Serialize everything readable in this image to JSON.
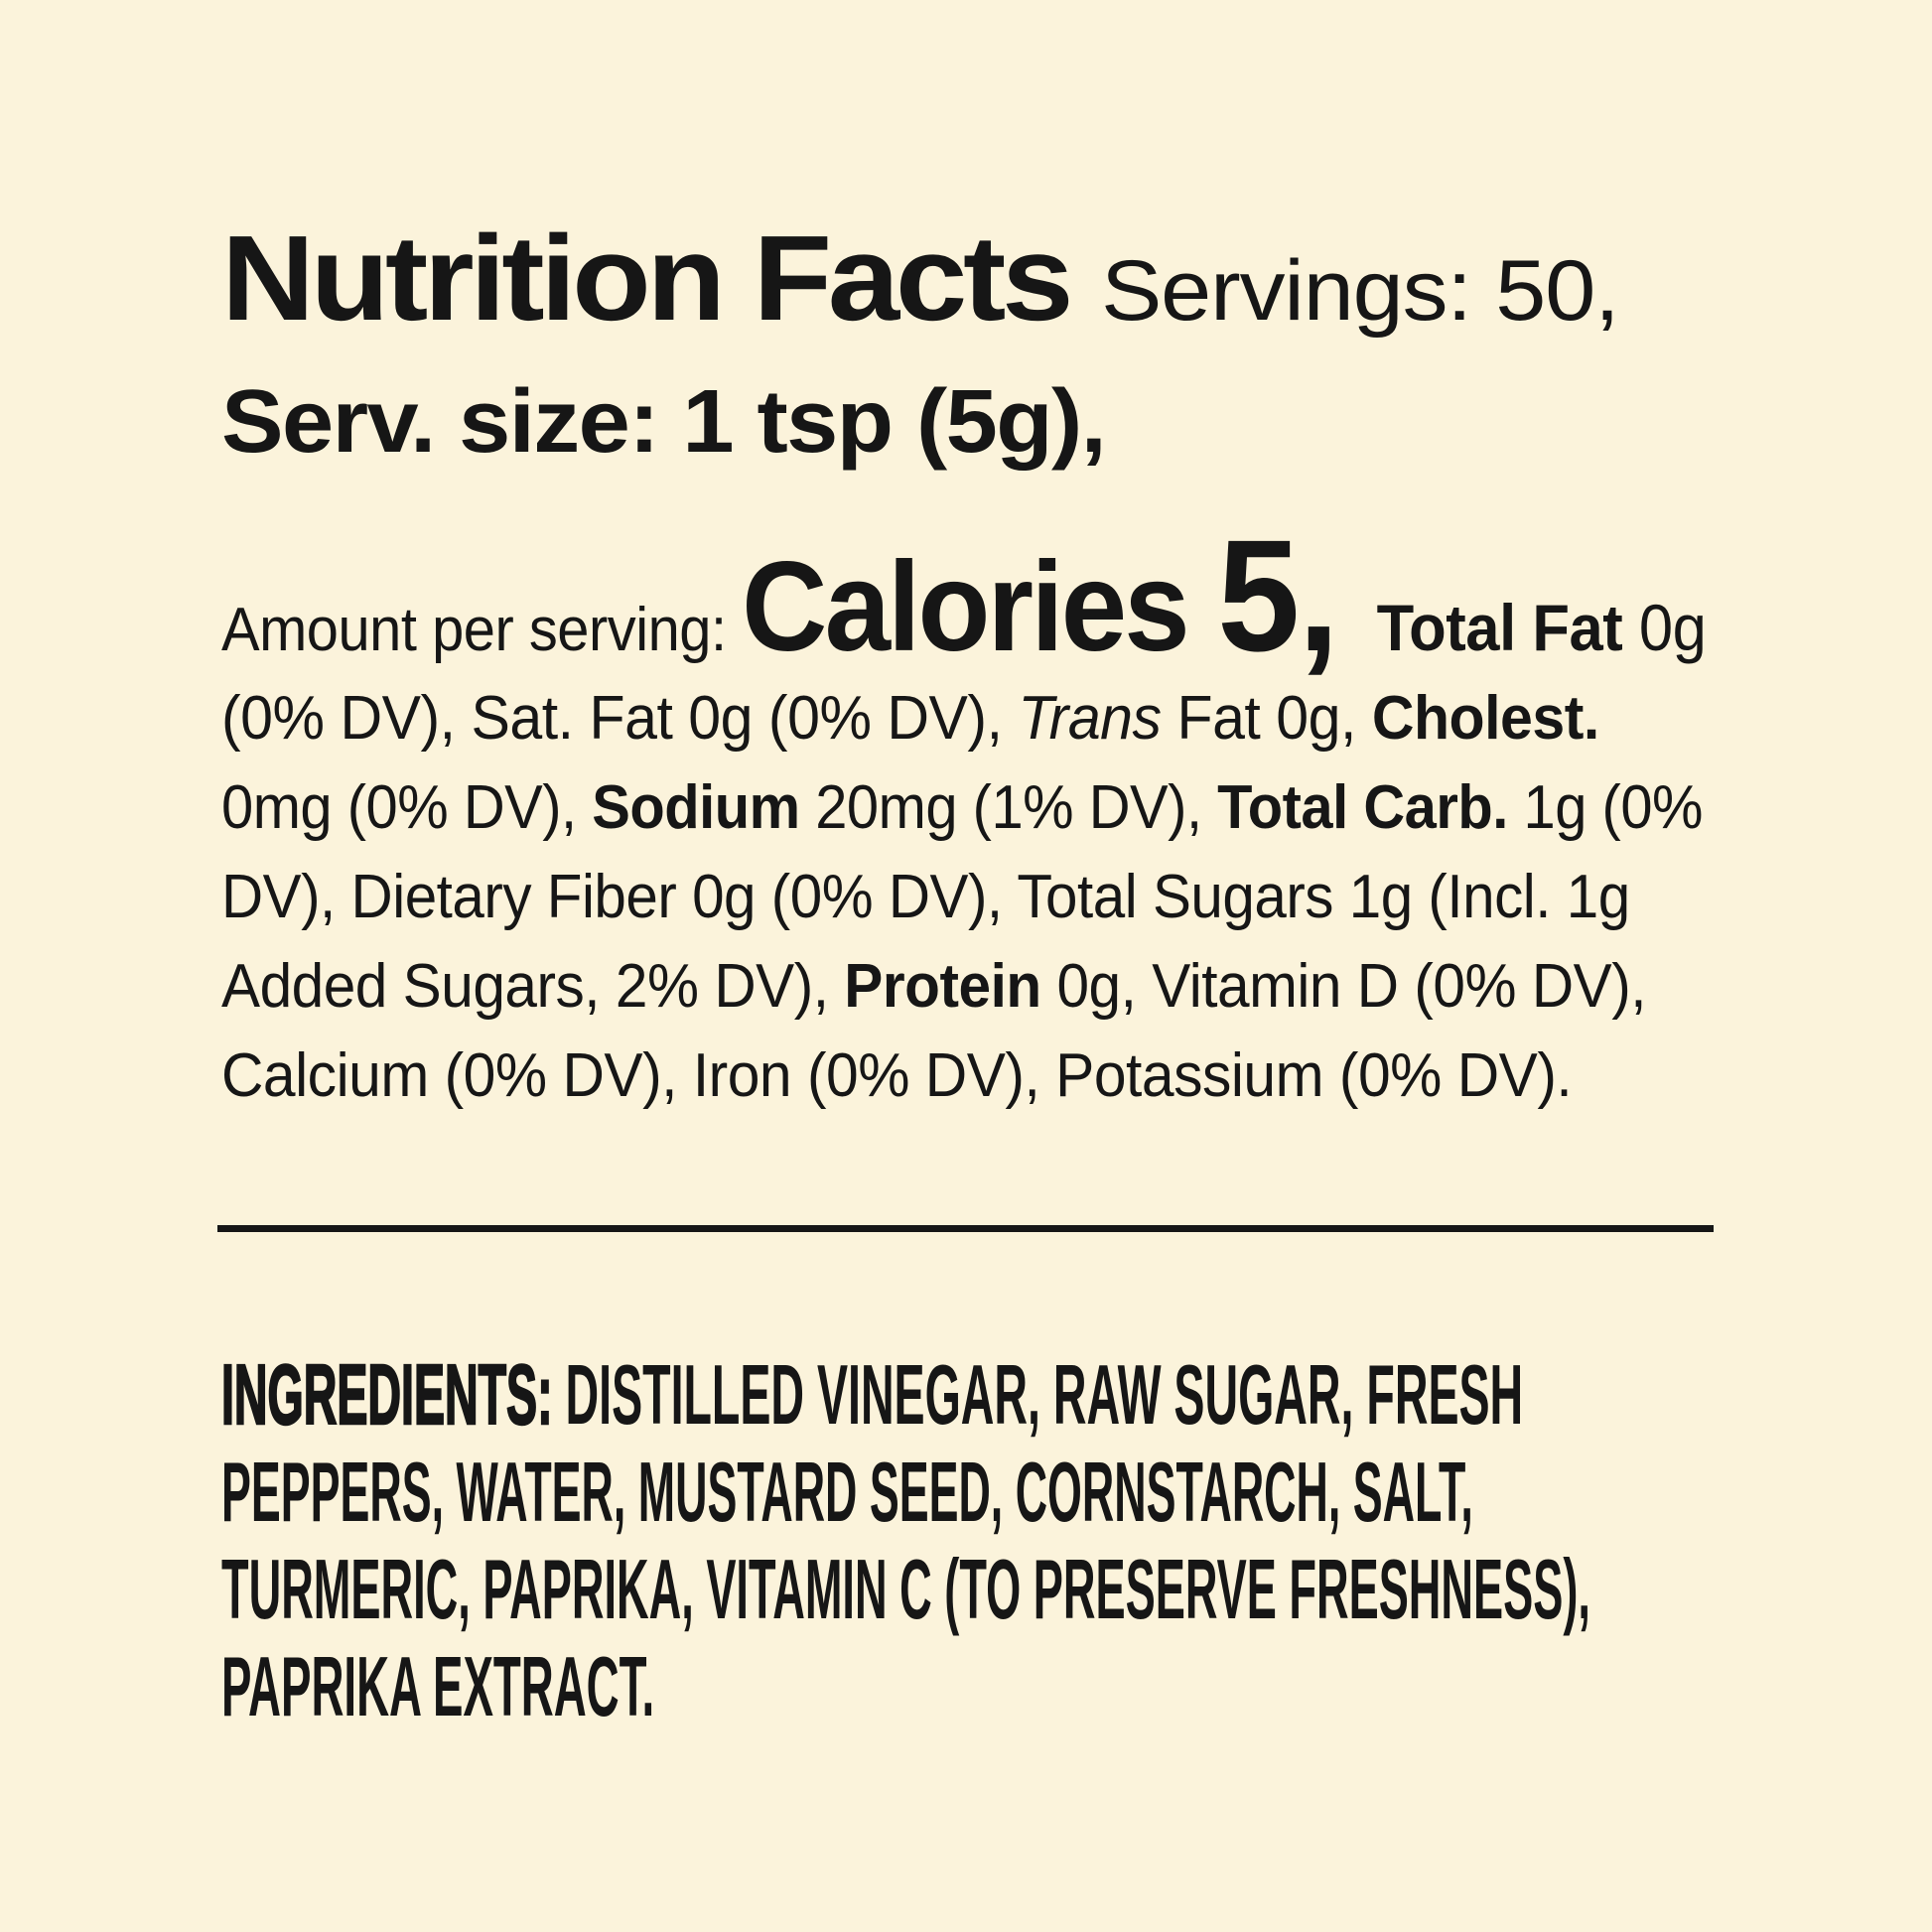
{
  "colors": {
    "background": "#FBF3DB",
    "text": "#161616",
    "divider": "#161616"
  },
  "header": {
    "line1": [
      {
        "t": "Nutrition Facts ",
        "s": "title"
      },
      {
        "t": "Servings: 50,",
        "s": "servings"
      }
    ],
    "line2": [
      {
        "t": "Serv. size: 1 tsp (5g),",
        "s": "servsize"
      }
    ]
  },
  "facts": {
    "line1": [
      {
        "t": "Amount per serving: ",
        "s": "plain"
      },
      {
        "t": "Calories ",
        "s": "cal"
      },
      {
        "t": "5, ",
        "s": "num"
      },
      {
        "t": "Total Fat ",
        "s": "boldmd"
      },
      {
        "t": "0g",
        "s": "plainmd"
      }
    ],
    "line2": [
      {
        "t": "(0% DV), Sat. Fat 0g (0% DV), ",
        "s": "plain"
      },
      {
        "t": "Trans",
        "s": "italic"
      },
      {
        "t": " Fat 0g, ",
        "s": "plain"
      },
      {
        "t": "Cholest.",
        "s": "bold"
      }
    ],
    "line3": [
      {
        "t": "0mg (0% DV), ",
        "s": "plain"
      },
      {
        "t": "Sodium",
        "s": "bold"
      },
      {
        "t": " 20mg (1% DV), ",
        "s": "plain"
      },
      {
        "t": "Total Carb.",
        "s": "bold"
      },
      {
        "t": " 1g (0%",
        "s": "plain"
      }
    ],
    "line4": [
      {
        "t": "DV), Dietary Fiber 0g (0% DV), Total Sugars 1g (Incl. 1g",
        "s": "plain"
      }
    ],
    "line5": [
      {
        "t": "Added Sugars, 2% DV), ",
        "s": "plain"
      },
      {
        "t": "Protein",
        "s": "bold"
      },
      {
        "t": " 0g, Vitamin D (0% DV),",
        "s": "plain"
      }
    ],
    "line6": [
      {
        "t": "Calcium (0% DV), Iron (0% DV), Potassium (0% DV).",
        "s": "plain"
      }
    ]
  },
  "ingredients": {
    "line1": [
      {
        "t": "INGREDIENTS: ",
        "s": "ingb"
      },
      {
        "t": "DISTILLED VINEGAR, RAW SUGAR, FRESH",
        "s": "ing"
      }
    ],
    "line2": [
      {
        "t": "PEPPERS, WATER, MUSTARD SEED, CORNSTARCH, SALT,",
        "s": "ing"
      }
    ],
    "line3": [
      {
        "t": "TURMERIC, PAPRIKA, VITAMIN C (TO PRESERVE FRESHNESS),",
        "s": "ing"
      }
    ],
    "line4": [
      {
        "t": "PAPRIKA EXTRACT.",
        "s": "ing"
      }
    ]
  }
}
